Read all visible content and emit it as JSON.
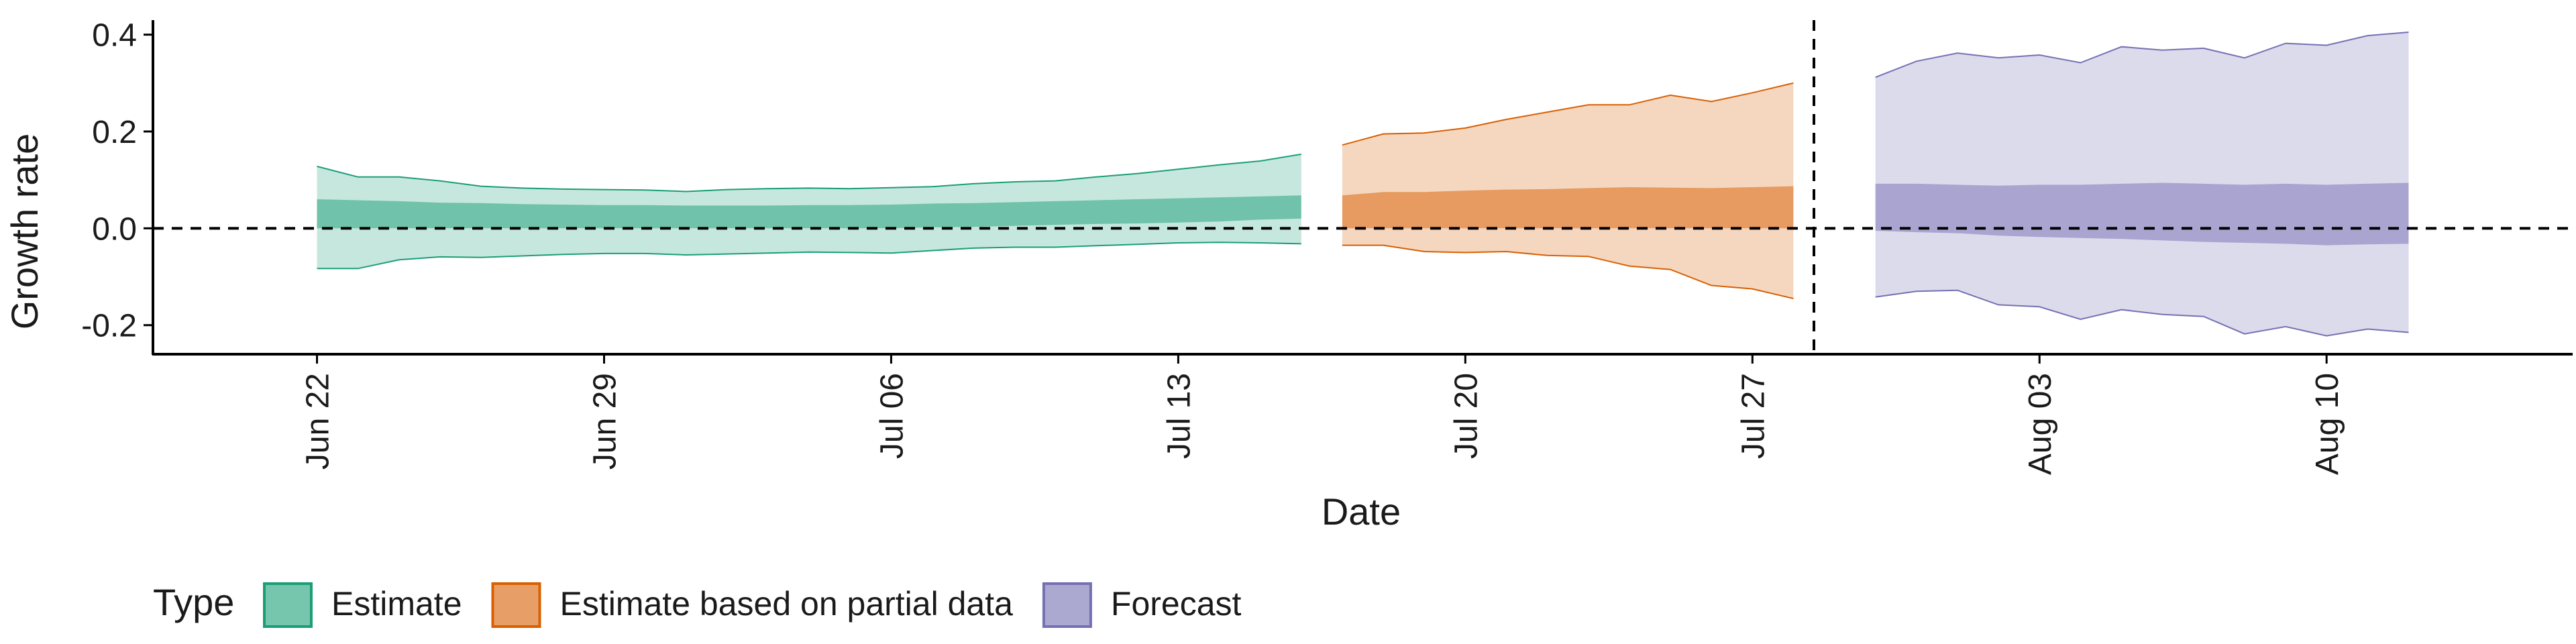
{
  "chart_data": {
    "type": "area",
    "xlabel": "Date",
    "ylabel": "Growth rate",
    "ylim": [
      -0.26,
      0.43
    ],
    "xlim": [
      "2020-06-18",
      "2020-08-16"
    ],
    "y_ticks": [
      -0.2,
      0.0,
      0.2,
      0.4
    ],
    "y_tick_labels": [
      "-0.2",
      "0.0",
      "0.2",
      "0.4"
    ],
    "x_ticks": [
      "2020-06-22",
      "2020-06-29",
      "2020-07-06",
      "2020-07-13",
      "2020-07-20",
      "2020-07-27",
      "2020-08-03",
      "2020-08-10"
    ],
    "x_tick_labels": [
      "Jun 22",
      "Jun 29",
      "Jul 06",
      "Jul 13",
      "Jul 20",
      "Jul 27",
      "Aug 03",
      "Aug 10"
    ],
    "reference_lines": {
      "horizontal_y": 0.0,
      "vertical_date": "2020-07-28",
      "style": "dashed"
    },
    "grid": false,
    "legend": {
      "title": "Type",
      "placement": "bottom-left",
      "entries": [
        "Estimate",
        "Estimate based on partial data",
        "Forecast"
      ]
    },
    "colors": {
      "estimate": "#1b9e77",
      "partial": "#d95f02",
      "forecast": "#7570b3"
    },
    "series": [
      {
        "name": "Estimate",
        "color_key": "estimate",
        "x": [
          "2020-06-22",
          "2020-06-23",
          "2020-06-24",
          "2020-06-25",
          "2020-06-26",
          "2020-06-27",
          "2020-06-28",
          "2020-06-29",
          "2020-06-30",
          "2020-07-01",
          "2020-07-02",
          "2020-07-03",
          "2020-07-04",
          "2020-07-05",
          "2020-07-06",
          "2020-07-07",
          "2020-07-08",
          "2020-07-09",
          "2020-07-10",
          "2020-07-11",
          "2020-07-12",
          "2020-07-13",
          "2020-07-14",
          "2020-07-15",
          "2020-07-16"
        ],
        "lower90": [
          -0.083,
          -0.083,
          -0.065,
          -0.059,
          -0.06,
          -0.057,
          -0.054,
          -0.052,
          -0.052,
          -0.055,
          -0.053,
          -0.051,
          -0.049,
          -0.05,
          -0.051,
          -0.046,
          -0.041,
          -0.039,
          -0.039,
          -0.036,
          -0.033,
          -0.03,
          -0.029,
          -0.03,
          -0.032
        ],
        "upper90": [
          0.128,
          0.106,
          0.106,
          0.098,
          0.087,
          0.083,
          0.081,
          0.08,
          0.079,
          0.076,
          0.08,
          0.082,
          0.083,
          0.082,
          0.084,
          0.086,
          0.092,
          0.096,
          0.098,
          0.106,
          0.113,
          0.122,
          0.131,
          0.139,
          0.153
        ],
        "lower50": [
          0.0,
          0.0,
          0.0,
          0.0,
          0.0,
          0.0,
          0.0,
          0.0,
          0.0,
          0.0,
          0.0,
          0.0,
          0.0,
          0.0,
          0.0,
          0.002,
          0.003,
          0.005,
          0.007,
          0.009,
          0.01,
          0.012,
          0.014,
          0.018,
          0.02
        ],
        "upper50": [
          0.06,
          0.058,
          0.056,
          0.053,
          0.052,
          0.05,
          0.049,
          0.048,
          0.048,
          0.047,
          0.047,
          0.047,
          0.048,
          0.048,
          0.049,
          0.051,
          0.052,
          0.054,
          0.056,
          0.058,
          0.06,
          0.062,
          0.064,
          0.066,
          0.068
        ]
      },
      {
        "name": "Estimate based on partial data",
        "color_key": "partial",
        "x": [
          "2020-07-17",
          "2020-07-18",
          "2020-07-19",
          "2020-07-20",
          "2020-07-21",
          "2020-07-22",
          "2020-07-23",
          "2020-07-24",
          "2020-07-25",
          "2020-07-26",
          "2020-07-27",
          "2020-07-28"
        ],
        "lower90": [
          -0.035,
          -0.035,
          -0.048,
          -0.05,
          -0.048,
          -0.056,
          -0.058,
          -0.078,
          -0.085,
          -0.118,
          -0.125,
          -0.145
        ],
        "upper90": [
          0.172,
          0.195,
          0.197,
          0.207,
          0.225,
          0.24,
          0.255,
          0.255,
          0.275,
          0.262,
          0.28,
          0.3
        ],
        "lower50": [
          0.0,
          0.0,
          0.0,
          0.0,
          0.0,
          0.0,
          0.0,
          0.0,
          0.0,
          0.0,
          0.0,
          0.0
        ],
        "upper50": [
          0.068,
          0.075,
          0.075,
          0.078,
          0.08,
          0.081,
          0.083,
          0.085,
          0.084,
          0.083,
          0.085,
          0.087
        ]
      },
      {
        "name": "Forecast",
        "color_key": "forecast",
        "x": [
          "2020-07-30",
          "2020-07-31",
          "2020-08-01",
          "2020-08-02",
          "2020-08-03",
          "2020-08-04",
          "2020-08-05",
          "2020-08-06",
          "2020-08-07",
          "2020-08-08",
          "2020-08-09",
          "2020-08-10",
          "2020-08-11",
          "2020-08-12"
        ],
        "lower90": [
          -0.142,
          -0.13,
          -0.128,
          -0.158,
          -0.162,
          -0.188,
          -0.168,
          -0.178,
          -0.182,
          -0.218,
          -0.203,
          -0.222,
          -0.208,
          -0.215
        ],
        "upper90": [
          0.312,
          0.345,
          0.362,
          0.352,
          0.358,
          0.342,
          0.375,
          0.368,
          0.372,
          0.352,
          0.382,
          0.378,
          0.398,
          0.405
        ],
        "lower50": [
          -0.005,
          -0.008,
          -0.01,
          -0.015,
          -0.018,
          -0.02,
          -0.022,
          -0.025,
          -0.028,
          -0.03,
          -0.032,
          -0.035,
          -0.033,
          -0.032
        ],
        "upper50": [
          0.092,
          0.092,
          0.09,
          0.088,
          0.09,
          0.09,
          0.092,
          0.094,
          0.092,
          0.09,
          0.092,
          0.09,
          0.092,
          0.094
        ]
      }
    ]
  }
}
